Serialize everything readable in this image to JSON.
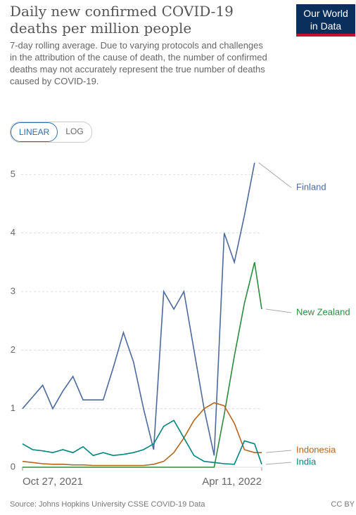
{
  "chart_data": {
    "type": "line",
    "title": "Daily new confirmed COVID-19 deaths per million people",
    "subtitle": "7-day rolling average. Due to varying protocols and challenges in the attribution of the cause of death, the number of confirmed deaths may not accurately represent the true number of deaths caused by COVID-19.",
    "logo": [
      "Our World",
      "in Data"
    ],
    "buttons": [
      "LINEAR",
      "LOG"
    ],
    "source": "Source: Johns Hopkins University CSSE COVID-19 Data",
    "license": "CC BY",
    "x": [
      "2021-10-27",
      "2021-11-03",
      "2021-11-10",
      "2021-11-17",
      "2021-11-24",
      "2021-12-01",
      "2021-12-08",
      "2021-12-15",
      "2021-12-22",
      "2021-12-29",
      "2022-01-05",
      "2022-01-12",
      "2022-01-19",
      "2022-01-26",
      "2022-02-02",
      "2022-02-09",
      "2022-02-16",
      "2022-02-23",
      "2022-03-02",
      "2022-03-09",
      "2022-03-16",
      "2022-03-23",
      "2022-03-30",
      "2022-04-06",
      "2022-04-11"
    ],
    "xlim": [
      "2021-10-27",
      "2022-04-11"
    ],
    "xticks": [
      {
        "value": "2021-10-27",
        "label": "Oct 27, 2021"
      },
      {
        "value": "2022-04-11",
        "label": "Apr 11, 2022"
      }
    ],
    "ylim": [
      0,
      5.4
    ],
    "yticks": [
      0,
      1,
      2,
      3,
      4,
      5
    ],
    "grid": true,
    "series": [
      {
        "name": "Finland",
        "color": "#4c6a9c",
        "values": [
          1.0,
          1.2,
          1.4,
          1.0,
          1.3,
          1.55,
          1.15,
          1.15,
          1.15,
          1.7,
          2.3,
          1.8,
          1.0,
          0.3,
          3.0,
          2.7,
          3.0,
          2.0,
          1.0,
          0.2,
          4.0,
          3.5,
          4.3,
          5.2,
          null
        ]
      },
      {
        "name": "New Zealand",
        "color": "#2d8a3e",
        "values": [
          0,
          0,
          0,
          0,
          0,
          0,
          0,
          0,
          0,
          0,
          0,
          0,
          0,
          0,
          0,
          0,
          0,
          0,
          0,
          0,
          0.9,
          1.9,
          2.8,
          3.5,
          2.7
        ]
      },
      {
        "name": "Indonesia",
        "color": "#b5651d",
        "values": [
          0.1,
          0.08,
          0.06,
          0.05,
          0.05,
          0.04,
          0.04,
          0.03,
          0.03,
          0.03,
          0.03,
          0.03,
          0.03,
          0.05,
          0.1,
          0.25,
          0.5,
          0.8,
          1.0,
          1.1,
          1.05,
          0.75,
          0.3,
          0.25,
          0.25
        ]
      },
      {
        "name": "India",
        "color": "#00847e",
        "values": [
          0.4,
          0.3,
          0.28,
          0.25,
          0.3,
          0.25,
          0.35,
          0.2,
          0.25,
          0.2,
          0.22,
          0.25,
          0.3,
          0.4,
          0.7,
          0.8,
          0.5,
          0.2,
          0.1,
          0.08,
          0.06,
          0.05,
          0.45,
          0.4,
          0.05
        ]
      }
    ]
  }
}
